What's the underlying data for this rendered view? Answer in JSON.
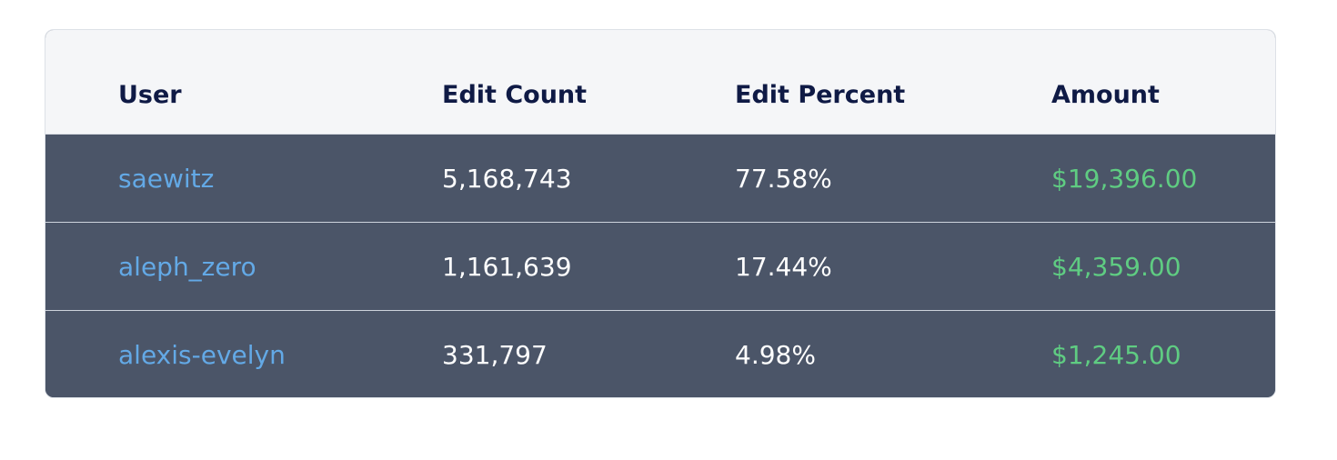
{
  "table": {
    "headers": {
      "user": "User",
      "edit_count": "Edit Count",
      "edit_percent": "Edit Percent",
      "amount": "Amount"
    },
    "rows": [
      {
        "user": "saewitz",
        "edit_count": "5,168,743",
        "edit_percent": "77.58%",
        "amount": "$19,396.00"
      },
      {
        "user": "aleph_zero",
        "edit_count": "1,161,639",
        "edit_percent": "17.44%",
        "amount": "$4,359.00"
      },
      {
        "user": "alexis-evelyn",
        "edit_count": "331,797",
        "edit_percent": "4.98%",
        "amount": "$1,245.00"
      }
    ]
  },
  "colors": {
    "header_bg": "#f5f6f8",
    "header_text": "#0f1a45",
    "row_bg": "#4b5568",
    "user_link": "#63a9e6",
    "amount_text": "#5fcc82",
    "body_text": "#ffffff"
  }
}
